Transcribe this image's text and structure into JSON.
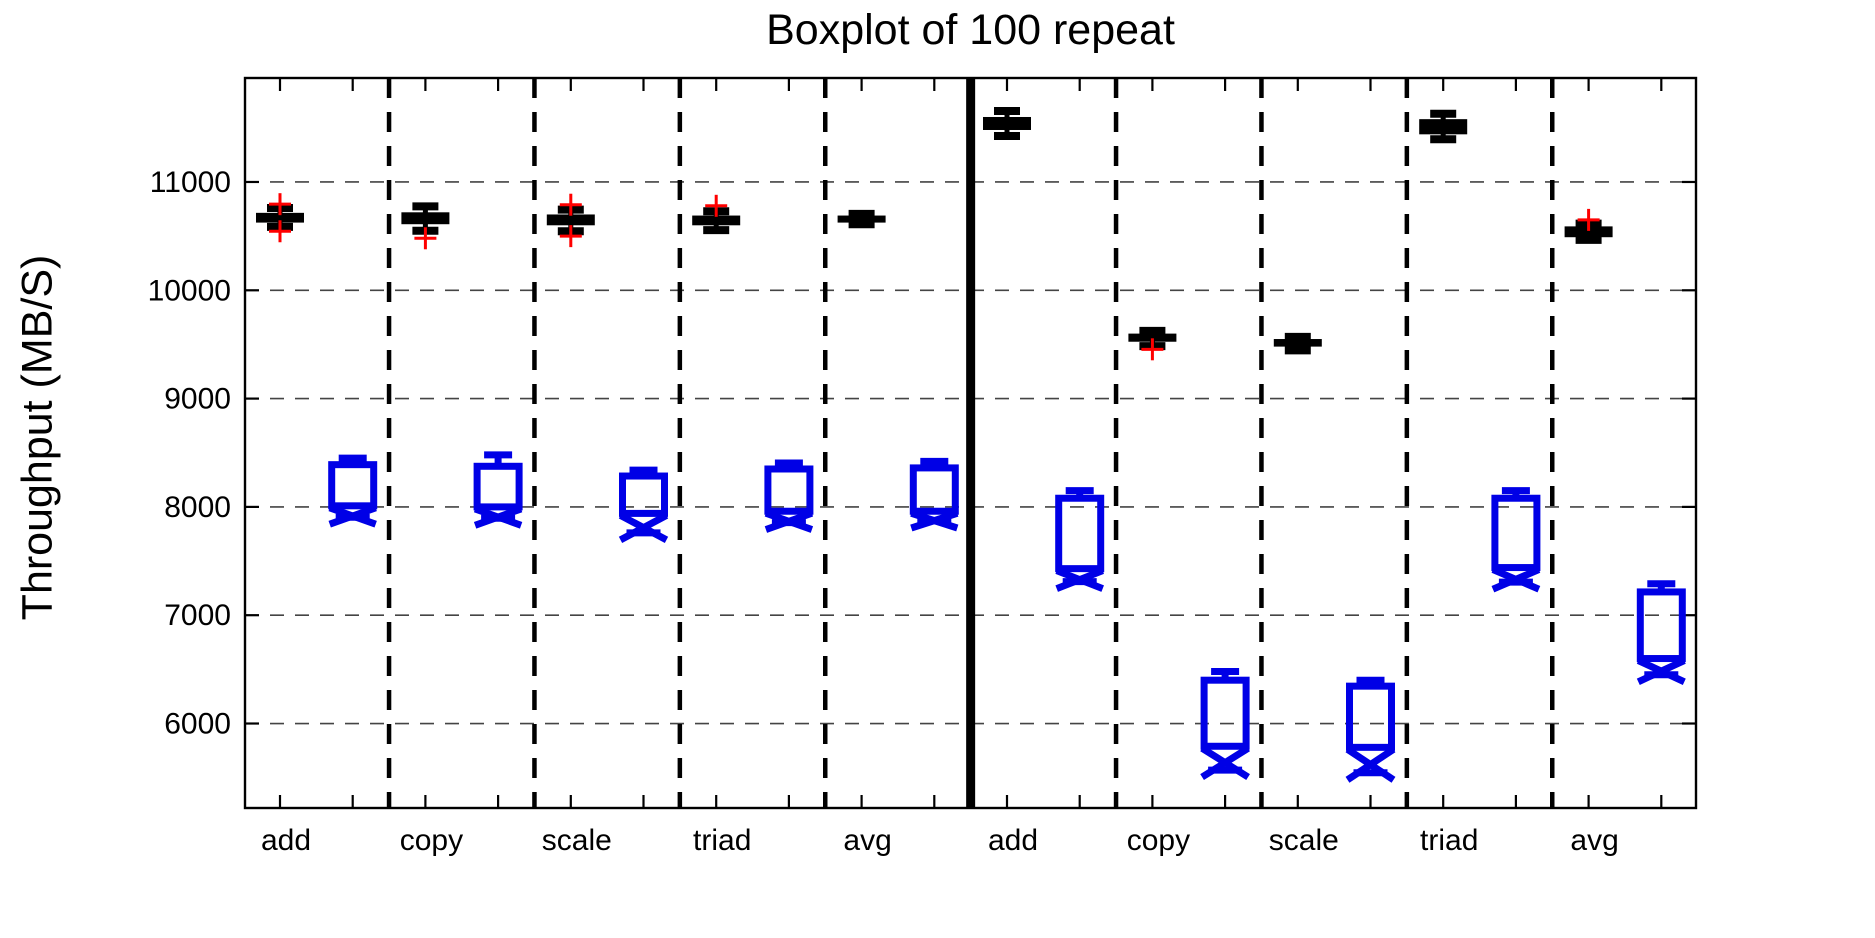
{
  "chart_data": {
    "type": "boxplot",
    "title": "Boxplot of 100 repeat",
    "ylabel": "Throughput (MB/S)",
    "ylim": [
      5220,
      11960
    ],
    "yticks": [
      6000,
      7000,
      8000,
      9000,
      10000,
      11000
    ],
    "grid": "dashed-horizontal",
    "groups": [
      "left",
      "right"
    ],
    "categories": [
      "add",
      "copy",
      "scale",
      "triad",
      "avg"
    ],
    "series": [
      {
        "name": "upper-black-series",
        "color": "#000000"
      },
      {
        "name": "lower-blue-notched-series",
        "color": "#0000E6"
      }
    ],
    "outlier_marker": {
      "shape": "plus",
      "color": "#FF0000"
    },
    "boxes": [
      {
        "group": "left",
        "category": "add",
        "series": "black",
        "whisker_low": 10585,
        "q1": 10625,
        "median": 10670,
        "q3": 10715,
        "whisker_high": 10760,
        "outliers": [
          10795,
          10545
        ],
        "notched": false
      },
      {
        "group": "left",
        "category": "add",
        "series": "blue",
        "whisker_low": 7905,
        "q1": 8010,
        "median": 7960,
        "q3": 8390,
        "whisker_high": 8450,
        "outliers": [],
        "notched": true
      },
      {
        "group": "left",
        "category": "copy",
        "series": "black",
        "whisker_low": 10550,
        "q1": 10610,
        "median": 10665,
        "q3": 10720,
        "whisker_high": 10775,
        "outliers": [
          10480
        ],
        "notched": false
      },
      {
        "group": "left",
        "category": "copy",
        "series": "blue",
        "whisker_low": 7895,
        "q1": 8000,
        "median": 7950,
        "q3": 8375,
        "whisker_high": 8480,
        "outliers": [],
        "notched": true
      },
      {
        "group": "left",
        "category": "scale",
        "series": "black",
        "whisker_low": 10545,
        "q1": 10600,
        "median": 10650,
        "q3": 10700,
        "whisker_high": 10745,
        "outliers": [
          10790,
          10500
        ],
        "notched": false
      },
      {
        "group": "left",
        "category": "scale",
        "series": "blue",
        "whisker_low": 7760,
        "q1": 7940,
        "median": 7900,
        "q3": 8285,
        "whisker_high": 8340,
        "outliers": [],
        "notched": true
      },
      {
        "group": "left",
        "category": "triad",
        "series": "black",
        "whisker_low": 10555,
        "q1": 10600,
        "median": 10645,
        "q3": 10690,
        "whisker_high": 10730,
        "outliers": [
          10780
        ],
        "notched": false
      },
      {
        "group": "left",
        "category": "triad",
        "series": "blue",
        "whisker_low": 7855,
        "q1": 7960,
        "median": 7915,
        "q3": 8350,
        "whisker_high": 8405,
        "outliers": [],
        "notched": true
      },
      {
        "group": "left",
        "category": "avg",
        "series": "black",
        "whisker_low": 10610,
        "q1": 10625,
        "median": 10660,
        "q3": 10690,
        "whisker_high": 10705,
        "outliers": [],
        "notched": false
      },
      {
        "group": "left",
        "category": "avg",
        "series": "blue",
        "whisker_low": 7870,
        "q1": 7960,
        "median": 7920,
        "q3": 8360,
        "whisker_high": 8420,
        "outliers": [],
        "notched": true
      },
      {
        "group": "right",
        "category": "add",
        "series": "black",
        "whisker_low": 11425,
        "q1": 11480,
        "median": 11530,
        "q3": 11600,
        "whisker_high": 11655,
        "outliers": [],
        "notched": false
      },
      {
        "group": "right",
        "category": "add",
        "series": "blue",
        "whisker_low": 7310,
        "q1": 7430,
        "median": 7370,
        "q3": 8080,
        "whisker_high": 8150,
        "outliers": [],
        "notched": true
      },
      {
        "group": "right",
        "category": "copy",
        "series": "black",
        "whisker_low": 9485,
        "q1": 9525,
        "median": 9560,
        "q3": 9600,
        "whisker_high": 9625,
        "outliers": [
          9455
        ],
        "notched": false
      },
      {
        "group": "right",
        "category": "copy",
        "series": "blue",
        "whisker_low": 5570,
        "q1": 5790,
        "median": 5700,
        "q3": 6400,
        "whisker_high": 6480,
        "outliers": [],
        "notched": true
      },
      {
        "group": "right",
        "category": "scale",
        "series": "black",
        "whisker_low": 9445,
        "q1": 9480,
        "median": 9515,
        "q3": 9550,
        "whisker_high": 9570,
        "outliers": [],
        "notched": false
      },
      {
        "group": "right",
        "category": "scale",
        "series": "blue",
        "whisker_low": 5545,
        "q1": 5780,
        "median": 5680,
        "q3": 6345,
        "whisker_high": 6400,
        "outliers": [],
        "notched": true
      },
      {
        "group": "right",
        "category": "triad",
        "series": "black",
        "whisker_low": 11395,
        "q1": 11440,
        "median": 11510,
        "q3": 11580,
        "whisker_high": 11630,
        "outliers": [],
        "notched": false
      },
      {
        "group": "right",
        "category": "triad",
        "series": "blue",
        "whisker_low": 7305,
        "q1": 7440,
        "median": 7370,
        "q3": 8080,
        "whisker_high": 8150,
        "outliers": [],
        "notched": true
      },
      {
        "group": "right",
        "category": "avg",
        "series": "black",
        "whisker_low": 10465,
        "q1": 10490,
        "median": 10535,
        "q3": 10590,
        "whisker_high": 10615,
        "outliers": [
          10650
        ],
        "notched": false
      },
      {
        "group": "right",
        "category": "avg",
        "series": "blue",
        "whisker_low": 6450,
        "q1": 6600,
        "median": 6530,
        "q3": 7215,
        "whisker_high": 7290,
        "outliers": [],
        "notched": true
      }
    ],
    "colors": {
      "black_series": "#000000",
      "blue_series": "#0000E6",
      "outlier": "#FF0000",
      "grid": "#444444",
      "axis": "#000000"
    }
  }
}
